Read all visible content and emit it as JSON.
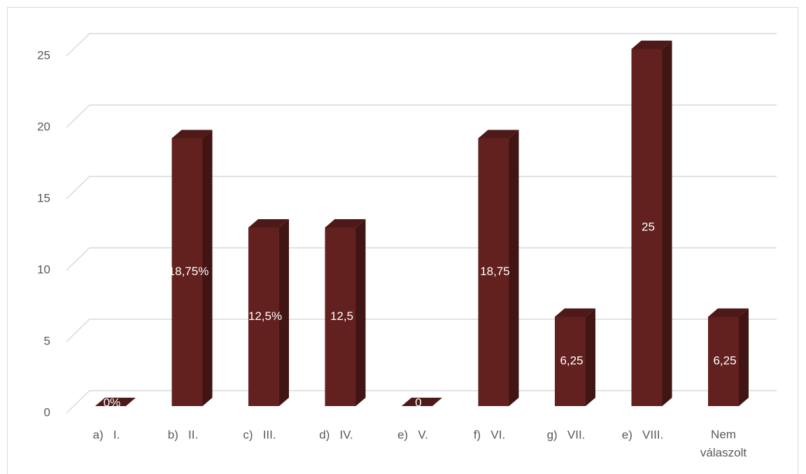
{
  "chart_data": {
    "type": "bar3d",
    "categories": [
      "a)   I.",
      "b)   II.",
      "c)   III.",
      "d)   IV.",
      "e)   V.",
      "f)   VI.",
      "g)   VII.",
      "e)   VIII.",
      "Nem\nválaszolt"
    ],
    "values": [
      0,
      18.75,
      12.5,
      12.5,
      0,
      18.75,
      6.25,
      25,
      6.25
    ],
    "value_labels": [
      "0%",
      "18,75%",
      "12,5%",
      "12,5",
      "0",
      "18,75",
      "6,25",
      "25",
      "6,25"
    ],
    "color": "#62201f",
    "ylim": [
      0,
      25
    ],
    "yticks": [
      0,
      5,
      10,
      15,
      20,
      25
    ],
    "grid": true
  }
}
